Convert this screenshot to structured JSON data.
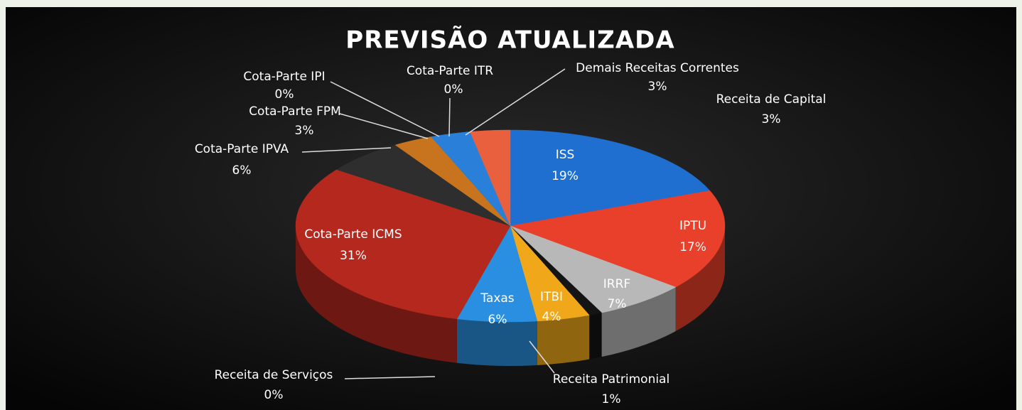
{
  "chart_data": {
    "type": "pie",
    "title": "PREVISÃO ATUALIZADA",
    "categories": [
      "ISS",
      "IPTU",
      "IRRF",
      "Receita Patrimonial",
      "ITBI",
      "Taxas",
      "Receita de Serviços",
      "Cota-Parte ICMS",
      "Cota-Parte IPVA",
      "Cota-Parte FPM",
      "Cota-Parte IPI",
      "Cota-Parte ITR",
      "Demais Receitas Correntes",
      "Receita de Capital"
    ],
    "values": [
      19,
      17,
      7,
      1,
      4,
      6,
      0,
      31,
      6,
      3,
      0,
      0,
      3,
      3
    ],
    "value_labels": [
      "19%",
      "17%",
      "7%",
      "1%",
      "4%",
      "6%",
      "0%",
      "31%",
      "6%",
      "3%",
      "0%",
      "0%",
      "3%",
      "3%"
    ],
    "colors": [
      "#1f6fd0",
      "#e8402a",
      "#b8b8b8",
      "#141414",
      "#f0a81a",
      "#2a8fe0",
      "#1a8a3a",
      "#b5281e",
      "#2e2e2e",
      "#c8741e",
      "#8a8a8a",
      "#6a4a2a",
      "#2a80d8",
      "#e8603e"
    ]
  }
}
